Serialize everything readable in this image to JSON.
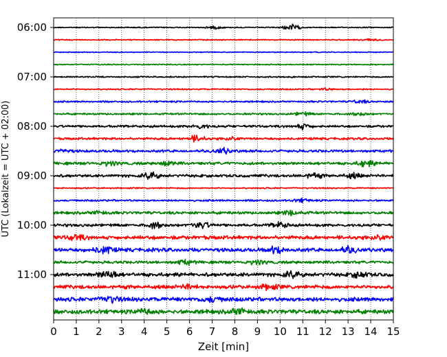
{
  "chart_data": {
    "type": "line",
    "title": "",
    "xlabel": "Zeit  [min]",
    "ylabel": "UTC (Lokalzeit = UTC + 02:00)",
    "xlim": [
      0,
      15
    ],
    "x_ticks": [
      "0",
      "1",
      "2",
      "3",
      "4",
      "5",
      "6",
      "7",
      "8",
      "9",
      "10",
      "11",
      "12",
      "13",
      "14",
      "15"
    ],
    "y_ticks": [
      "06:00",
      "07:00",
      "08:00",
      "09:00",
      "10:00",
      "11:00"
    ],
    "y_tick_rows": [
      0,
      4,
      8,
      12,
      16,
      20
    ],
    "row_interval_min": 15,
    "grid": "vertical dotted",
    "colors": [
      "#000000",
      "#ff0000",
      "#0000ff",
      "#008000"
    ],
    "rows": [
      {
        "start": "06:00",
        "amp": 0.12,
        "bursts": [
          [
            10.5,
            0.6
          ],
          [
            7.1,
            0.25
          ]
        ]
      },
      {
        "start": "06:15",
        "amp": 0.12,
        "bursts": [
          [
            14.0,
            0.25
          ]
        ]
      },
      {
        "start": "06:30",
        "amp": 0.1,
        "bursts": []
      },
      {
        "start": "06:45",
        "amp": 0.12,
        "bursts": []
      },
      {
        "start": "07:00",
        "amp": 0.15,
        "bursts": []
      },
      {
        "start": "07:15",
        "amp": 0.15,
        "bursts": [
          [
            12.0,
            0.2
          ]
        ]
      },
      {
        "start": "07:30",
        "amp": 0.18,
        "bursts": [
          [
            13.5,
            0.3
          ]
        ]
      },
      {
        "start": "07:45",
        "amp": 0.2,
        "bursts": [
          [
            11.0,
            0.35
          ],
          [
            13.5,
            0.3
          ]
        ]
      },
      {
        "start": "08:00",
        "amp": 0.25,
        "bursts": [
          [
            6.5,
            0.4
          ],
          [
            11.0,
            0.5
          ]
        ]
      },
      {
        "start": "08:15",
        "amp": 0.25,
        "bursts": [
          [
            6.3,
            0.6
          ],
          [
            8.0,
            0.3
          ]
        ]
      },
      {
        "start": "08:30",
        "amp": 0.28,
        "bursts": [
          [
            7.5,
            0.5
          ],
          [
            0.4,
            0.3
          ]
        ]
      },
      {
        "start": "08:45",
        "amp": 0.3,
        "bursts": [
          [
            2.5,
            0.4
          ],
          [
            5.0,
            0.4
          ],
          [
            13.8,
            0.6
          ]
        ]
      },
      {
        "start": "09:00",
        "amp": 0.3,
        "bursts": [
          [
            4.3,
            0.6
          ],
          [
            11.5,
            0.45
          ],
          [
            13.2,
            0.45
          ]
        ]
      },
      {
        "start": "09:15",
        "amp": 0.15,
        "bursts": []
      },
      {
        "start": "09:30",
        "amp": 0.2,
        "bursts": [
          [
            11.0,
            0.3
          ]
        ]
      },
      {
        "start": "09:45",
        "amp": 0.3,
        "bursts": [
          [
            2.0,
            0.3
          ],
          [
            10.5,
            0.45
          ]
        ]
      },
      {
        "start": "10:00",
        "amp": 0.3,
        "bursts": [
          [
            4.5,
            0.55
          ],
          [
            6.5,
            0.7
          ],
          [
            10.0,
            0.5
          ]
        ]
      },
      {
        "start": "10:15",
        "amp": 0.4,
        "bursts": [
          [
            1.0,
            0.5
          ],
          [
            14.5,
            0.45
          ]
        ]
      },
      {
        "start": "10:30",
        "amp": 0.4,
        "bursts": [
          [
            2.2,
            0.8
          ],
          [
            9.8,
            0.6
          ],
          [
            13.0,
            0.5
          ]
        ]
      },
      {
        "start": "10:45",
        "amp": 0.3,
        "bursts": [
          [
            5.8,
            0.45
          ],
          [
            9.0,
            0.4
          ]
        ]
      },
      {
        "start": "11:00",
        "amp": 0.4,
        "bursts": [
          [
            2.4,
            0.9
          ],
          [
            10.5,
            0.5
          ],
          [
            13.5,
            0.5
          ]
        ]
      },
      {
        "start": "11:15",
        "amp": 0.4,
        "bursts": [
          [
            9.5,
            0.55
          ],
          [
            6.0,
            0.4
          ]
        ]
      },
      {
        "start": "11:30",
        "amp": 0.45,
        "bursts": [
          [
            2.5,
            0.5
          ],
          [
            7.0,
            0.45
          ]
        ]
      },
      {
        "start": "11:45",
        "amp": 0.45,
        "bursts": [
          [
            8.2,
            0.55
          ],
          [
            4.0,
            0.45
          ]
        ]
      }
    ]
  }
}
